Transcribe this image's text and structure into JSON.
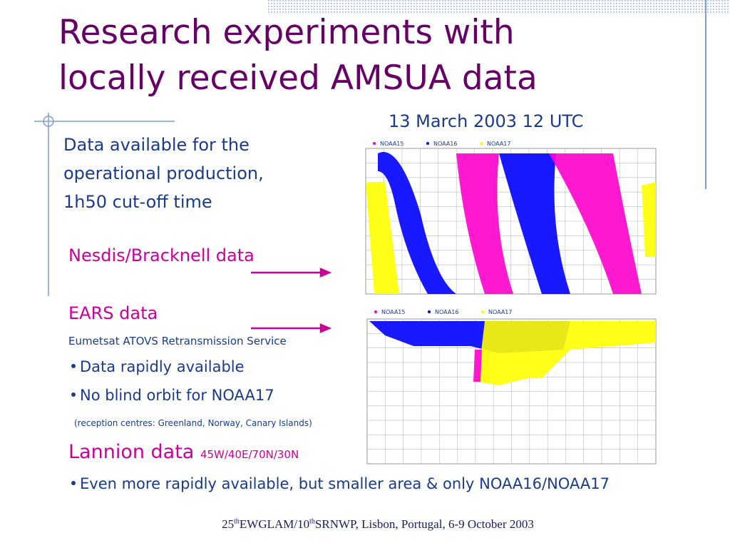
{
  "title": [
    "Research experiments with",
    "locally received AMSUA data"
  ],
  "map_caption": "13 March 2003 12 UTC",
  "intro": [
    "Data available for the",
    "operational production,",
    "1h50 cut-off time"
  ],
  "nesdis": "Nesdis/Bracknell data",
  "ears": {
    "title": "EARS data",
    "subtitle": "Eumetsat ATOVS Retransmission Service",
    "bullets": [
      "Data rapidly available",
      "No blind orbit for NOAA17"
    ],
    "note": "(reception centres: Greenland, Norway, Canary Islands)"
  },
  "lannion": {
    "title": "Lannion data",
    "area": "45W/40E/70N/30N",
    "bullet": "Even more rapidly available, but smaller area & only NOAA16/NOAA17"
  },
  "map_legend": [
    "NOAA15",
    "NOAA16",
    "NOAA17"
  ],
  "footer": [
    "25",
    "th",
    "EWGLAM/10",
    "th",
    "SRNWP, Lisbon, Portugal, 6-9 October 2003"
  ]
}
